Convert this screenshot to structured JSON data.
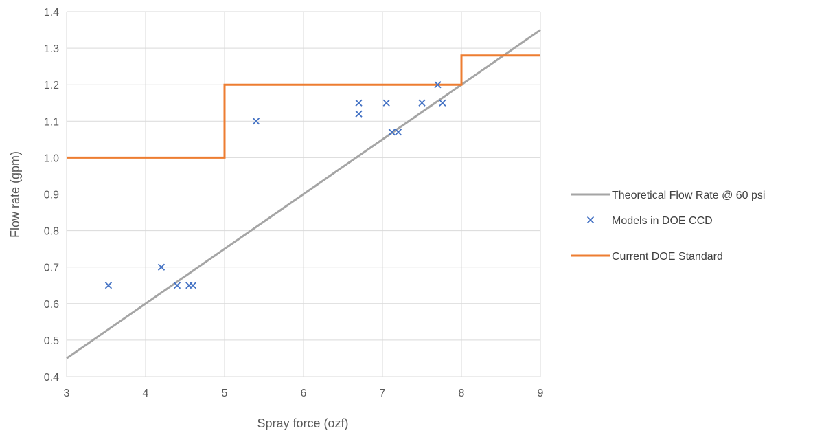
{
  "chart_data": {
    "type": "scatter",
    "title": "",
    "xlabel": "Spray force (ozf)",
    "ylabel": "Flow rate (gpm)",
    "xlim": [
      3,
      9
    ],
    "ylim": [
      0.4,
      1.4
    ],
    "x_ticks": [
      "3",
      "4",
      "5",
      "6",
      "7",
      "8",
      "9"
    ],
    "y_ticks": [
      "0.4",
      "0.5",
      "0.6",
      "0.7",
      "0.8",
      "0.9",
      "1.0",
      "1.1",
      "1.2",
      "1.3",
      "1.4"
    ],
    "grid": true,
    "legend_position": "right",
    "series": [
      {
        "name": "Theoretical Flow Rate @ 60 psi",
        "kind": "line",
        "color": "#a5a5a5",
        "points": [
          [
            3,
            0.45
          ],
          [
            9,
            1.35
          ]
        ]
      },
      {
        "name": "Models in DOE CCD",
        "kind": "scatter",
        "marker": "x",
        "color": "#4472c4",
        "points": [
          [
            3.53,
            0.65
          ],
          [
            4.2,
            0.7
          ],
          [
            4.4,
            0.65
          ],
          [
            4.55,
            0.65
          ],
          [
            4.6,
            0.65
          ],
          [
            5.4,
            1.1
          ],
          [
            6.7,
            1.15
          ],
          [
            6.7,
            1.12
          ],
          [
            7.05,
            1.15
          ],
          [
            7.12,
            1.07
          ],
          [
            7.2,
            1.07
          ],
          [
            7.5,
            1.15
          ],
          [
            7.7,
            1.2
          ],
          [
            7.76,
            1.15
          ]
        ]
      },
      {
        "name": "Current DOE Standard",
        "kind": "step",
        "color": "#ed7d31",
        "points": [
          [
            3,
            1.0
          ],
          [
            5,
            1.0
          ],
          [
            5,
            1.2
          ],
          [
            8,
            1.2
          ],
          [
            8,
            1.28
          ],
          [
            9,
            1.28
          ]
        ]
      }
    ]
  }
}
